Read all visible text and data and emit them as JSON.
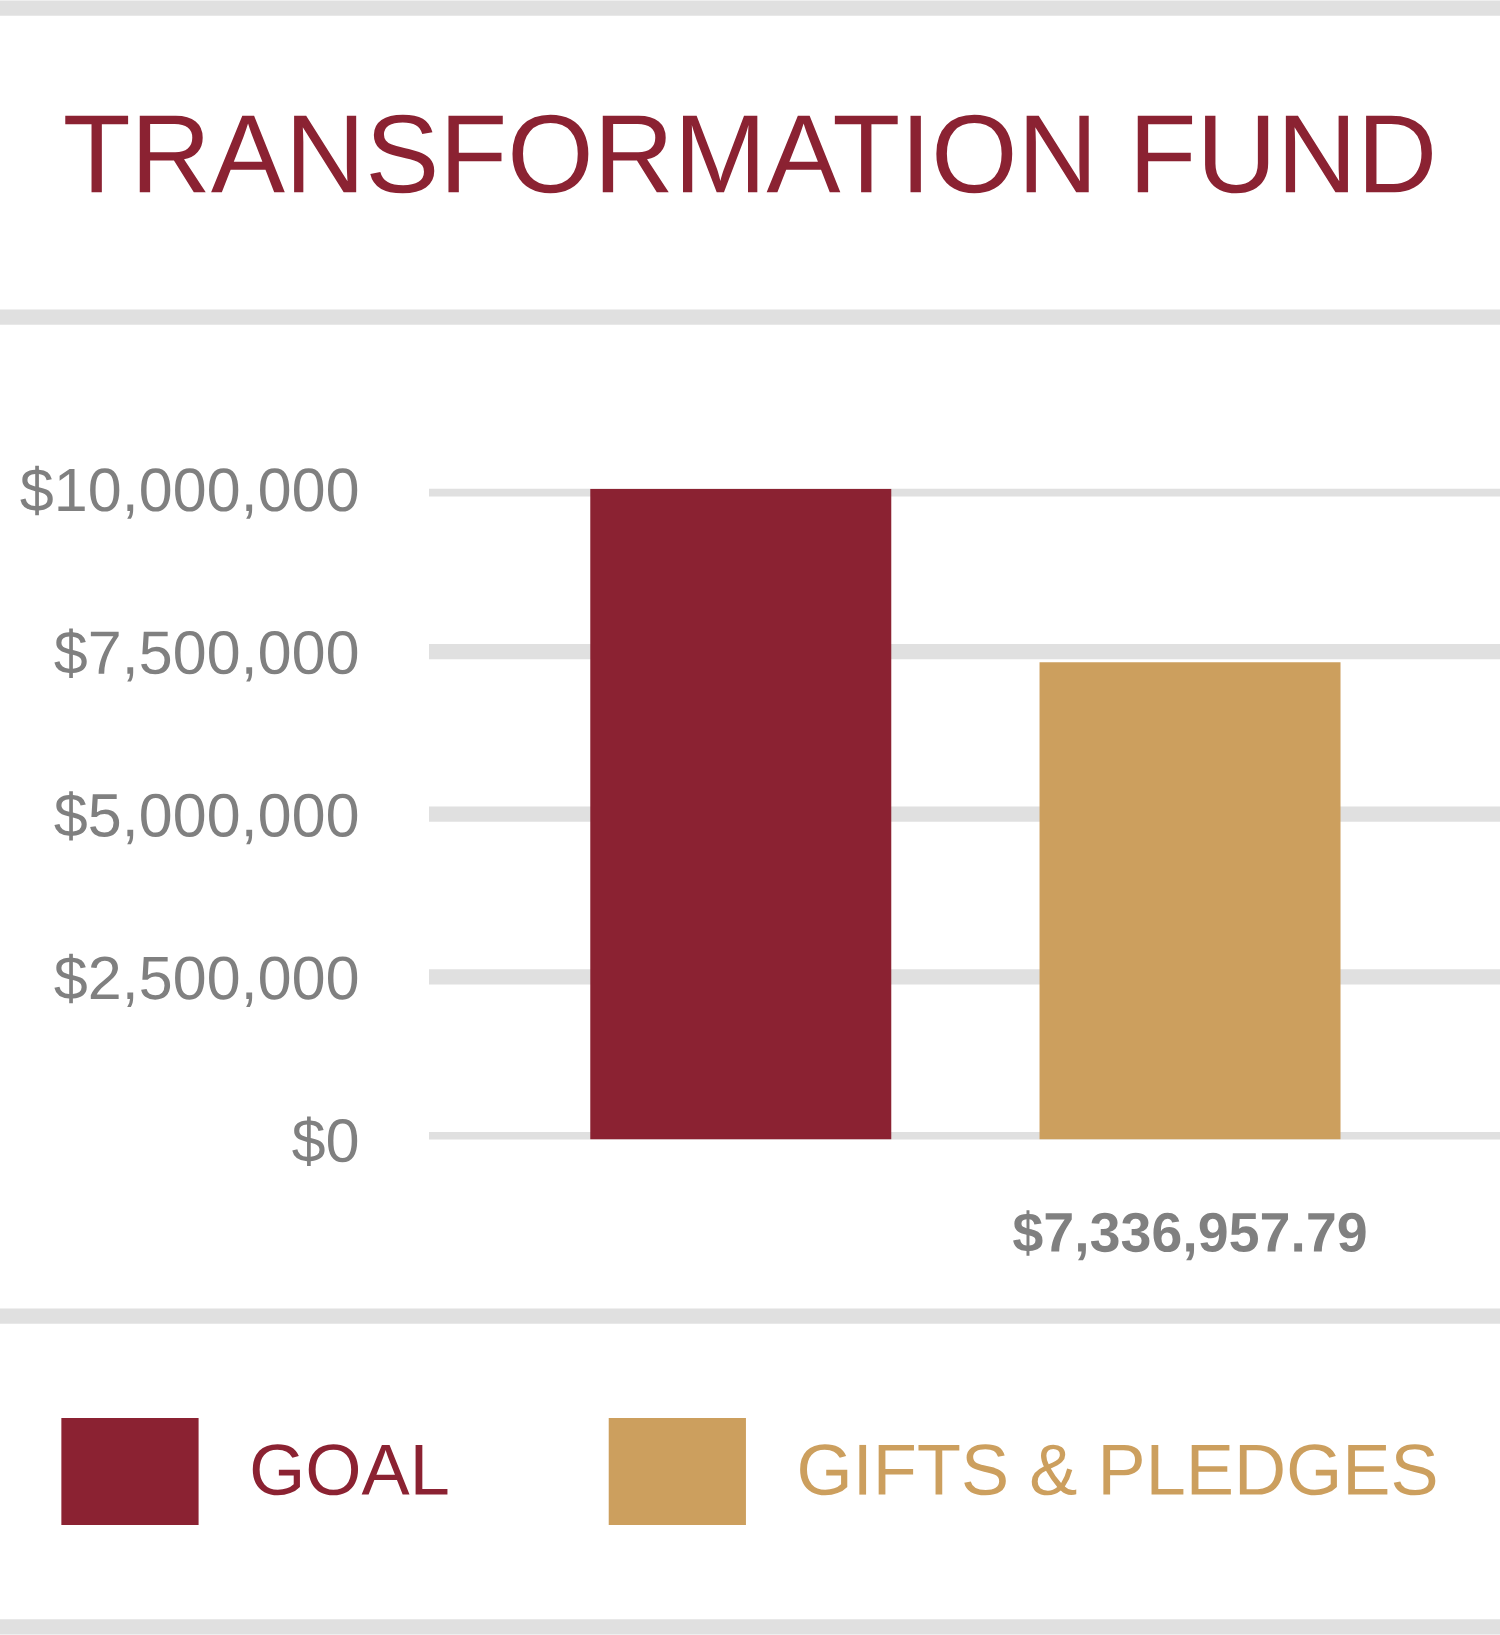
{
  "chart_data": {
    "type": "bar",
    "title": "TRANSFORMATION FUND",
    "categories": [
      null,
      null
    ],
    "series": [
      {
        "name": "GOAL",
        "color": "#8b2232",
        "values": [
          10000000,
          null
        ]
      },
      {
        "name": "GIFTS & PLEDGES",
        "color": "#cc9f5e",
        "values": [
          null,
          7336957.79
        ],
        "value_labels": [
          null,
          "$7,336,957.79"
        ]
      }
    ],
    "ylim": [
      0,
      10000000
    ],
    "yticks": [
      {
        "value": 0,
        "label": "$0"
      },
      {
        "value": 2500000,
        "label": "$2,500,000"
      },
      {
        "value": 5000000,
        "label": "$5,000,000"
      },
      {
        "value": 7500000,
        "label": "$7,500,000"
      },
      {
        "value": 10000000,
        "label": "$10,000,000"
      }
    ],
    "grid": "y",
    "legend": "bottom",
    "tick_labels": "y"
  }
}
